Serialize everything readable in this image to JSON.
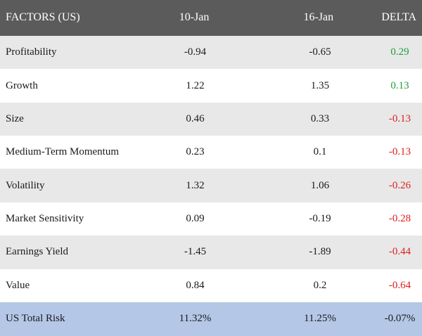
{
  "header": {
    "factor": "FACTORS (US)",
    "col1": "10-Jan",
    "col2": "16-Jan",
    "col3": "DELTA"
  },
  "colors": {
    "header_bg": "#5b5b5b",
    "shaded_row": "#e8e8e8",
    "total_row": "#b4c7e7",
    "positive": "#1e9e3c",
    "negative": "#e01b1b"
  },
  "rows": [
    {
      "factor": "Profitability",
      "jan10": "-0.94",
      "jan16": "-0.65",
      "delta": "0.29"
    },
    {
      "factor": "Growth",
      "jan10": "1.22",
      "jan16": "1.35",
      "delta": "0.13"
    },
    {
      "factor": "Size",
      "jan10": "0.46",
      "jan16": "0.33",
      "delta": "-0.13"
    },
    {
      "factor": "Medium-Term Momentum",
      "jan10": "0.23",
      "jan16": "0.1",
      "delta": "-0.13"
    },
    {
      "factor": "Volatility",
      "jan10": "1.32",
      "jan16": "1.06",
      "delta": "-0.26"
    },
    {
      "factor": "Market Sensitivity",
      "jan10": "0.09",
      "jan16": "-0.19",
      "delta": "-0.28"
    },
    {
      "factor": "Earnings Yield",
      "jan10": "-1.45",
      "jan16": "-1.89",
      "delta": "-0.44"
    },
    {
      "factor": "Value",
      "jan10": "0.84",
      "jan16": "0.2",
      "delta": "-0.64"
    }
  ],
  "total": {
    "factor": "US Total Risk",
    "jan10": "11.32%",
    "jan16": "11.25%",
    "delta": "-0.07%"
  }
}
